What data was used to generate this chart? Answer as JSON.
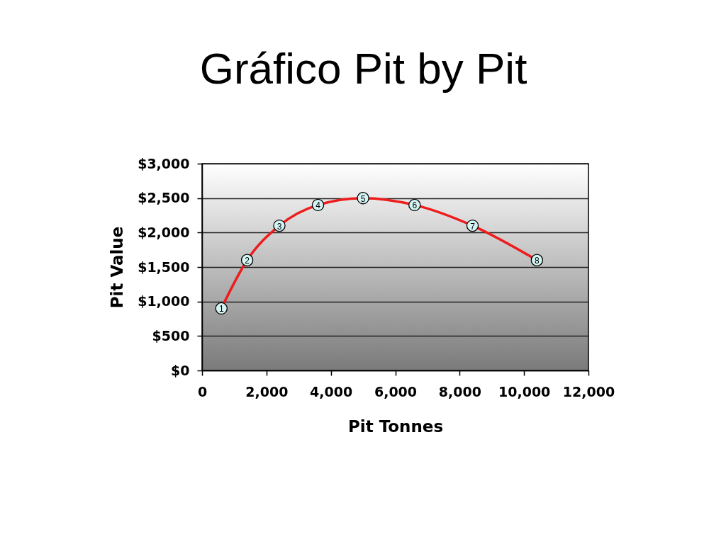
{
  "chart_data": {
    "type": "line",
    "title": "Gráfico Pit by Pit",
    "xlabel": "Pit Tonnes",
    "ylabel": "Pit Value",
    "x": [
      600,
      1400,
      2400,
      3600,
      5000,
      6600,
      8400,
      10400
    ],
    "values": [
      900,
      1600,
      2100,
      2400,
      2500,
      2400,
      2100,
      1600
    ],
    "color": "#ee1c1c",
    "marker": "circle",
    "line_style": "solid",
    "annotations": [
      {
        "text": "1",
        "x": 600,
        "y": 900
      },
      {
        "text": "2",
        "x": 1400,
        "y": 1600
      },
      {
        "text": "3",
        "x": 2400,
        "y": 2100
      },
      {
        "text": "4",
        "x": 3600,
        "y": 2400
      },
      {
        "text": "5",
        "x": 5000,
        "y": 2500
      },
      {
        "text": "6",
        "x": 6600,
        "y": 2400
      },
      {
        "text": "7",
        "x": 8400,
        "y": 2100
      },
      {
        "text": "8",
        "x": 10400,
        "y": 1600
      }
    ],
    "xlim": [
      0,
      12000
    ],
    "xticks": [
      0,
      {
        "value": 2000,
        "label": "2,000"
      },
      {
        "value": 4000,
        "label": "4,000"
      },
      {
        "value": 6000,
        "label": "6,000"
      },
      {
        "value": 8000,
        "label": "8,000"
      },
      {
        "value": 10000,
        "label": "10,000"
      },
      {
        "value": 12000,
        "label": "12,000"
      }
    ],
    "ylim": [
      0,
      3000
    ],
    "yticks": [
      {
        "value": 0,
        "label": "$0"
      },
      {
        "value": 500,
        "label": "$500"
      },
      {
        "value": 1000,
        "label": "$1,000"
      },
      {
        "value": 1500,
        "label": "$1,500"
      },
      {
        "value": 2000,
        "label": "$2,000"
      },
      {
        "value": 2500,
        "label": "$2,500"
      },
      {
        "value": 3000,
        "label": "$3,000"
      }
    ],
    "grid": "y"
  }
}
